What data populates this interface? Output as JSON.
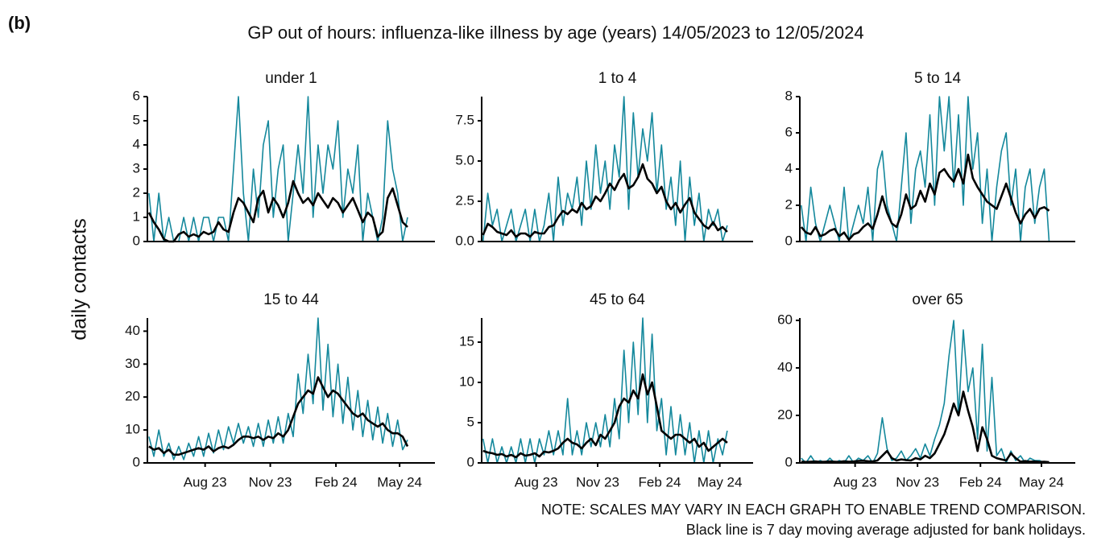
{
  "panel_label": "(b)",
  "title": "GP out of hours: influenza-like illness by age (years) 14/05/2023 to 12/05/2024",
  "ylabel": "daily contacts",
  "notes": [
    "NOTE: SCALES MAY VARY IN EACH GRAPH TO ENABLE TREND COMPARISON.",
    "Black line is 7 day moving average adjusted for bank holidays."
  ],
  "chart_data": [
    {
      "type": "line",
      "title": "under 1",
      "xlim": [
        -0.3,
        57.5
      ],
      "ylim": [
        0,
        6
      ],
      "yticks": [
        0,
        1,
        2,
        3,
        4,
        5,
        6
      ],
      "series": [
        {
          "color": "#14889c",
          "values": [
            2,
            0,
            2,
            0,
            1,
            0,
            0,
            1,
            0,
            1,
            0,
            1,
            1,
            0,
            1,
            1,
            0,
            3,
            6,
            2,
            0,
            3,
            1,
            4,
            5,
            1,
            3,
            4,
            0,
            2,
            4,
            2,
            6,
            1,
            4,
            2,
            4,
            3,
            5,
            1,
            3,
            2,
            4,
            0,
            2,
            1,
            0,
            1,
            5,
            3,
            2,
            0,
            1
          ]
        },
        {
          "color": "#000000",
          "values": [
            1.2,
            0.8,
            0.5,
            0.1,
            0,
            0,
            0.3,
            0.4,
            0.2,
            0.3,
            0.2,
            0.4,
            0.3,
            0.4,
            0.8,
            0.5,
            0.4,
            1.2,
            1.8,
            1.6,
            1.2,
            0.8,
            1.8,
            2.1,
            1.2,
            1.8,
            1.5,
            1.0,
            1.6,
            2.5,
            2.0,
            1.6,
            1.8,
            1.5,
            2.0,
            1.7,
            1.4,
            1.8,
            1.6,
            1.2,
            1.5,
            1.8,
            1.3,
            0.8,
            1.2,
            1.0,
            0.2,
            0.4,
            1.8,
            2.2,
            1.5,
            0.8,
            0.6
          ]
        }
      ]
    },
    {
      "type": "line",
      "title": "1 to 4",
      "xlim": [
        -0.3,
        57.5
      ],
      "ylim": [
        0,
        9
      ],
      "yticks": [
        {
          "value": 0,
          "label": "0.0"
        },
        2.5,
        {
          "value": 5,
          "label": "5.0"
        },
        7.5
      ],
      "series": [
        {
          "color": "#14889c",
          "values": [
            0,
            3,
            1,
            2,
            0,
            1,
            2,
            0,
            1,
            2,
            0,
            2,
            0,
            1,
            3,
            0,
            4,
            1,
            3,
            2,
            4,
            1,
            5,
            2,
            6,
            3,
            5,
            2,
            6,
            4,
            9,
            2,
            8,
            4,
            7,
            5,
            8,
            3,
            6,
            2,
            4,
            1,
            5,
            0,
            4,
            1,
            3,
            0,
            2,
            1,
            2,
            0,
            1
          ]
        },
        {
          "color": "#000000",
          "values": [
            0.4,
            1.1,
            0.9,
            0.6,
            0.5,
            0.4,
            0.7,
            0.3,
            0.5,
            0.5,
            0.3,
            0.6,
            0.5,
            0.5,
            0.9,
            1.0,
            1.5,
            1.9,
            1.7,
            2.0,
            1.8,
            2.4,
            2.0,
            2.2,
            2.8,
            2.5,
            3.0,
            3.6,
            3.2,
            3.8,
            4.2,
            3.3,
            3.5,
            4.0,
            4.8,
            3.9,
            3.6,
            3.0,
            3.4,
            2.5,
            2.0,
            2.4,
            1.8,
            2.3,
            2.7,
            1.8,
            1.4,
            1.0,
            0.8,
            1.2,
            0.7,
            0.9,
            0.6
          ]
        }
      ]
    },
    {
      "type": "line",
      "title": "5 to 14",
      "xlim": [
        -0.3,
        57.5
      ],
      "ylim": [
        0,
        8
      ],
      "yticks": [
        0,
        2,
        4,
        6,
        8
      ],
      "series": [
        {
          "color": "#14889c",
          "values": [
            2,
            0,
            3,
            1,
            0,
            1,
            2,
            1,
            0,
            3,
            0,
            1,
            2,
            1,
            3,
            0,
            4,
            5,
            2,
            1,
            0,
            3,
            6,
            1,
            4,
            5,
            3,
            7,
            2,
            8,
            5,
            8,
            3,
            7,
            2,
            8,
            4,
            6,
            1,
            4,
            0,
            3,
            5,
            6,
            2,
            4,
            0,
            3,
            4,
            1,
            3,
            4,
            0
          ]
        },
        {
          "color": "#000000",
          "values": [
            0.8,
            0.5,
            0.4,
            0.8,
            0.3,
            0.4,
            0.6,
            0.7,
            0.3,
            0.5,
            0.1,
            0.4,
            0.5,
            0.8,
            1.0,
            0.7,
            1.5,
            2.5,
            1.6,
            1.0,
            0.8,
            1.5,
            2.6,
            1.8,
            2.0,
            2.8,
            2.2,
            3.2,
            2.6,
            3.8,
            4.0,
            3.6,
            3.3,
            4.0,
            3.2,
            4.8,
            3.5,
            3.0,
            2.6,
            2.2,
            2.0,
            1.8,
            2.5,
            3.2,
            2.4,
            1.6,
            1.0,
            1.5,
            1.8,
            1.3,
            1.8,
            1.9,
            1.7
          ]
        }
      ]
    },
    {
      "type": "line",
      "title": "15 to 44",
      "xlim": [
        -0.3,
        57.5
      ],
      "ylim": [
        0,
        44
      ],
      "yticks": [
        0,
        10,
        20,
        30,
        40
      ],
      "xticks": [
        {
          "value": 11.3,
          "label": "Aug 23"
        },
        {
          "value": 24.4,
          "label": "Nov 23"
        },
        {
          "value": 37.6,
          "label": "Feb 24"
        },
        {
          "value": 50.4,
          "label": "May 24"
        }
      ],
      "series": [
        {
          "color": "#14889c",
          "values": [
            8,
            2,
            10,
            2,
            6,
            1,
            5,
            1,
            6,
            2,
            8,
            2,
            9,
            3,
            10,
            4,
            11,
            6,
            12,
            6,
            11,
            5,
            12,
            5,
            13,
            6,
            14,
            6,
            15,
            8,
            27,
            15,
            33,
            18,
            44,
            16,
            36,
            14,
            30,
            12,
            26,
            10,
            22,
            8,
            19,
            7,
            17,
            6,
            15,
            5,
            13,
            4,
            7
          ]
        },
        {
          "color": "#000000",
          "values": [
            5,
            4,
            4.5,
            3,
            4,
            2.5,
            2.5,
            3,
            3.5,
            4,
            4.5,
            4,
            5,
            3.5,
            4.5,
            5,
            4.5,
            5.5,
            7,
            8,
            8,
            7.5,
            8,
            7,
            8,
            7.5,
            9,
            8,
            10,
            14,
            18,
            20,
            22,
            21,
            26,
            23,
            20,
            22,
            21,
            19,
            17,
            15,
            14,
            15,
            13,
            12,
            11,
            12,
            10,
            9,
            9,
            8,
            5
          ]
        }
      ]
    },
    {
      "type": "line",
      "title": "45 to 64",
      "xlim": [
        -0.3,
        57.5
      ],
      "ylim": [
        0,
        18
      ],
      "yticks": [
        0,
        5,
        10,
        15
      ],
      "xticks": [
        {
          "value": 11.3,
          "label": "Aug 23"
        },
        {
          "value": 24.4,
          "label": "Nov 23"
        },
        {
          "value": 37.6,
          "label": "Feb 24"
        },
        {
          "value": 50.4,
          "label": "May 24"
        }
      ],
      "series": [
        {
          "color": "#14889c",
          "values": [
            3,
            0,
            3,
            0,
            2,
            0,
            2,
            0,
            3,
            0,
            3,
            0,
            3,
            1,
            4,
            1,
            4,
            1,
            8,
            1,
            4,
            1,
            5,
            2,
            5,
            2,
            6,
            2,
            8,
            3,
            14,
            5,
            15,
            6,
            18,
            5,
            16,
            4,
            8,
            1,
            7,
            1,
            6,
            1,
            5,
            0,
            4,
            0,
            4,
            0,
            3,
            1,
            4
          ]
        },
        {
          "color": "#000000",
          "values": [
            1.5,
            1.3,
            1.2,
            1,
            1.1,
            0.8,
            1,
            0.7,
            1.2,
            0.9,
            1,
            1.2,
            0.8,
            1.4,
            1.3,
            1.5,
            1.8,
            2.5,
            3,
            2.5,
            2.3,
            1.8,
            2.5,
            3,
            2.2,
            3.5,
            3,
            4,
            5,
            7,
            8,
            7.5,
            9,
            8,
            11,
            8.5,
            10,
            7,
            4,
            3.5,
            3,
            3.5,
            3.5,
            3,
            2.5,
            3,
            2,
            2.5,
            1.5,
            2,
            2.5,
            3,
            2.5
          ]
        }
      ]
    },
    {
      "type": "line",
      "title": "over 65",
      "xlim": [
        -0.3,
        57.5
      ],
      "ylim": [
        0,
        61
      ],
      "yticks": [
        0,
        20,
        40,
        60
      ],
      "xticks": [
        {
          "value": 11.3,
          "label": "Aug 23"
        },
        {
          "value": 24.4,
          "label": "Nov 23"
        },
        {
          "value": 37.6,
          "label": "Feb 24"
        },
        {
          "value": 50.4,
          "label": "May 24"
        }
      ],
      "series": [
        {
          "color": "#14889c",
          "values": [
            2,
            0,
            3,
            0,
            1,
            0,
            2,
            0,
            1,
            0,
            3,
            0,
            2,
            1,
            3,
            0,
            4,
            19,
            6,
            1,
            2,
            5,
            1,
            3,
            6,
            2,
            8,
            3,
            10,
            16,
            25,
            45,
            60,
            20,
            56,
            30,
            40,
            10,
            50,
            5,
            36,
            3,
            6,
            0,
            5,
            1,
            3,
            0,
            2,
            1,
            1,
            0,
            0
          ]
        },
        {
          "color": "#000000",
          "values": [
            0.5,
            0.4,
            0.5,
            0.6,
            0.4,
            0.5,
            0.6,
            0.5,
            0.4,
            0.7,
            0.5,
            0.6,
            0.8,
            0.9,
            0.7,
            0.6,
            1,
            3,
            5,
            2,
            1,
            1.5,
            1.2,
            1,
            2,
            1.5,
            3,
            2,
            4,
            8,
            12,
            18,
            25,
            20,
            30,
            22,
            15,
            5,
            15,
            10,
            3,
            2,
            1.5,
            1,
            4,
            2,
            0.5,
            0.8,
            0.5,
            0.6,
            0.4,
            0.5,
            0.3
          ]
        }
      ]
    }
  ]
}
